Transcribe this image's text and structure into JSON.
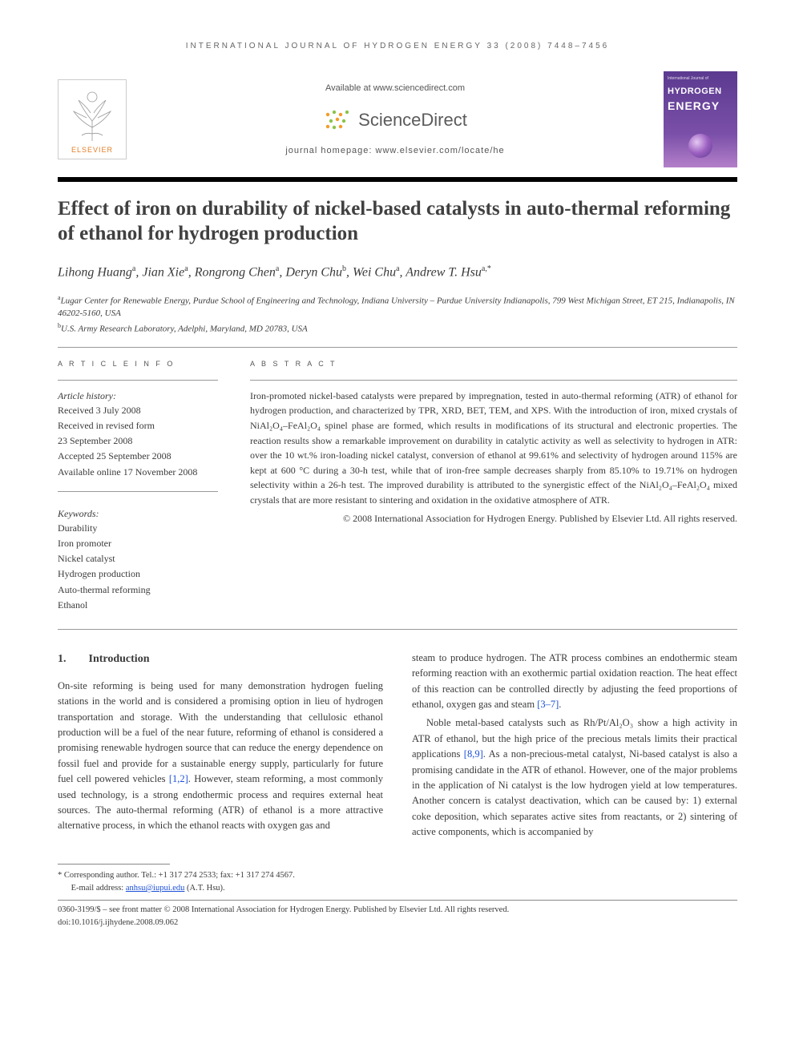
{
  "running_head": "INTERNATIONAL JOURNAL OF HYDROGEN ENERGY 33 (2008) 7448–7456",
  "masthead": {
    "elsevier_label": "ELSEVIER",
    "available_line": "Available at www.sciencedirect.com",
    "sd_label": "ScienceDirect",
    "homepage_line": "journal homepage: www.elsevier.com/locate/he",
    "cover_pretitle": "International Journal of",
    "cover_title1": "HYDROGEN",
    "cover_title2": "ENERGY"
  },
  "title": "Effect of iron on durability of nickel-based catalysts in auto-thermal reforming of ethanol for hydrogen production",
  "authors_html": "Lihong Huang<sup>a</sup>, Jian Xie<sup>a</sup>, Rongrong Chen<sup>a</sup>, Deryn Chu<sup>b</sup>, Wei Chu<sup>a</sup>, Andrew T. Hsu<sup>a,*</sup>",
  "affiliations": [
    "<sup>a</sup>Lugar Center for Renewable Energy, Purdue School of Engineering and Technology, Indiana University – Purdue University Indianapolis, 799 West Michigan Street, ET 215, Indianapolis, IN 46202-5160, USA",
    "<sup>b</sup>U.S. Army Research Laboratory, Adelphi, Maryland, MD 20783, USA"
  ],
  "labels": {
    "article_info": "A R T I C L E   I N F O",
    "abstract": "A B S T R A C T",
    "history": "Article history:",
    "keywords": "Keywords:"
  },
  "history": [
    "Received 3 July 2008",
    "Received in revised form",
    "23 September 2008",
    "Accepted 25 September 2008",
    "Available online 17 November 2008"
  ],
  "keywords": [
    "Durability",
    "Iron promoter",
    "Nickel catalyst",
    "Hydrogen production",
    "Auto-thermal reforming",
    "Ethanol"
  ],
  "abstract": "Iron-promoted nickel-based catalysts were prepared by impregnation, tested in auto-thermal reforming (ATR) of ethanol for hydrogen production, and characterized by TPR, XRD, BET, TEM, and XPS. With the introduction of iron, mixed crystals of NiAl₂O₄–FeAl₂O₄ spinel phase are formed, which results in modifications of its structural and electronic properties. The reaction results show a remarkable improvement on durability in catalytic activity as well as selectivity to hydrogen in ATR: over the 10 wt.% iron-loading nickel catalyst, conversion of ethanol at 99.61% and selectivity of hydrogen around 115% are kept at 600 °C during a 30-h test, while that of iron-free sample decreases sharply from 85.10% to 19.71% on hydrogen selectivity within a 26-h test. The improved durability is attributed to the synergistic effect of the NiAl₂O₄–FeAl₂O₄ mixed crystals that are more resistant to sintering and oxidation in the oxidative atmosphere of ATR.",
  "copyright": "© 2008 International Association for Hydrogen Energy. Published by Elsevier Ltd. All rights reserved.",
  "intro": {
    "num": "1.",
    "heading": "Introduction",
    "col1": "On-site reforming is being used for many demonstration hydrogen fueling stations in the world and is considered a promising option in lieu of hydrogen transportation and storage. With the understanding that cellulosic ethanol production will be a fuel of the near future, reforming of ethanol is considered a promising renewable hydrogen source that can reduce the energy dependence on fossil fuel and provide for a sustainable energy supply, particularly for future fuel cell powered vehicles <a class='ref' href='#'>[1,2]</a>. However, steam reforming, a most commonly used technology, is a strong endothermic process and requires external heat sources. The auto-thermal reforming (ATR) of ethanol is a more attractive alternative process, in which the ethanol reacts with oxygen gas and",
    "col2_p1": "steam to produce hydrogen. The ATR process combines an endothermic steam reforming reaction with an exothermic partial oxidation reaction. The heat effect of this reaction can be controlled directly by adjusting the feed proportions of ethanol, oxygen gas and steam <a class='ref' href='#'>[3–7]</a>.",
    "col2_p2": "Noble metal-based catalysts such as Rh/Pt/Al₂O₃ show a high activity in ATR of ethanol, but the high price of the precious metals limits their practical applications <a class='ref' href='#'>[8,9]</a>. As a non-precious-metal catalyst, Ni-based catalyst is also a promising candidate in the ATR of ethanol. However, one of the major problems in the application of Ni catalyst is the low hydrogen yield at low temperatures. Another concern is catalyst deactivation, which can be caused by: 1) external coke deposition, which separates active sites from reactants, or 2) sintering of active components, which is accompanied by"
  },
  "footnotes": {
    "corr": "* Corresponding author. Tel.: +1 317 274 2533; fax: +1 317 274 4567.",
    "email_label": "E-mail address:",
    "email": "anhsu@iupui.edu",
    "email_tail": "(A.T. Hsu).",
    "issn_line": "0360-3199/$ – see front matter © 2008 International Association for Hydrogen Energy. Published by Elsevier Ltd. All rights reserved.",
    "doi_line": "doi:10.1016/j.ijhydene.2008.09.062"
  },
  "colors": {
    "elsevier_orange": "#e27e26",
    "sd_orange": "#f39c27",
    "sd_green": "#8bc34a",
    "link_blue": "#1a4fd8",
    "cover_purple_top": "#5b3a8f",
    "cover_purple_bottom": "#b37fc9",
    "text": "#3a3a3a"
  }
}
